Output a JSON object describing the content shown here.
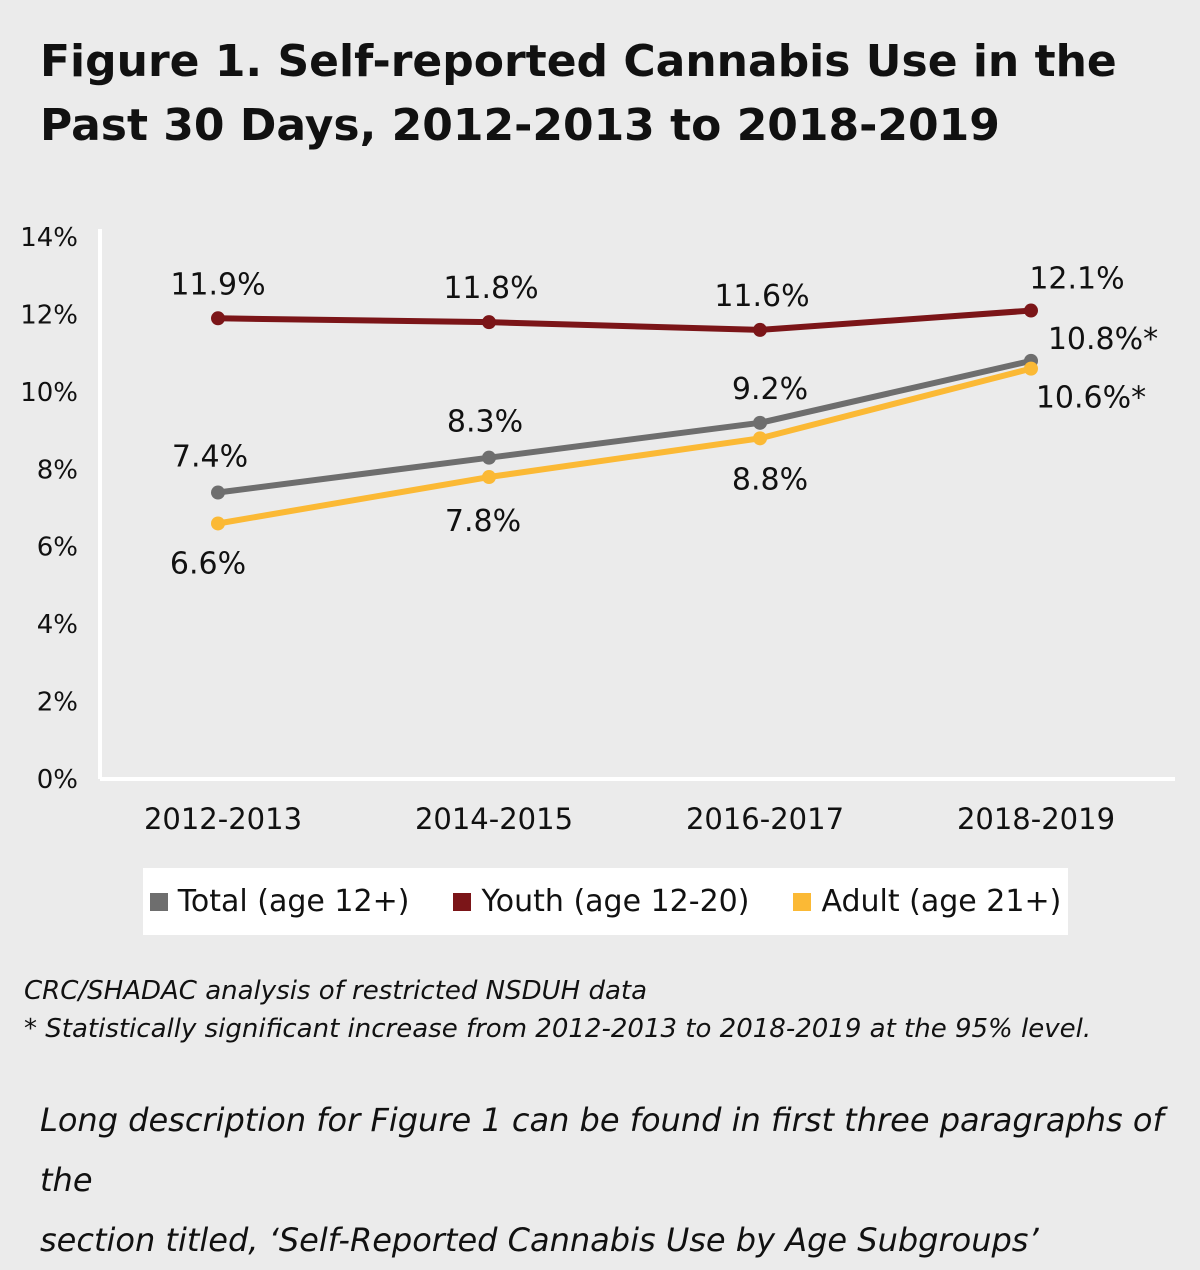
{
  "title_line1": "Figure 1. Self-reported Cannabis Use in the",
  "title_line2": "Past 30 Days, 2012-2013 to 2018-2019",
  "chart_data": {
    "type": "line",
    "title": "Figure 1. Self-reported Cannabis Use in the Past 30 Days, 2012-2013 to 2018-2019",
    "categories": [
      "2012-2013",
      "2014-2015",
      "2016-2017",
      "2018-2019"
    ],
    "ylim": [
      0,
      14
    ],
    "yticks": [
      0,
      2,
      4,
      6,
      8,
      10,
      12,
      14
    ],
    "ytick_labels": [
      "0%",
      "2%",
      "4%",
      "6%",
      "8%",
      "10%",
      "12%",
      "14%"
    ],
    "xlabel": "",
    "ylabel": "",
    "grid": false,
    "legend_position": "bottom",
    "series": [
      {
        "name": "Total (age 12+)",
        "key": "total",
        "color": "#6e6e6e",
        "values": [
          7.4,
          8.3,
          9.2,
          10.8
        ],
        "labels": [
          "7.4%",
          "8.3%",
          "9.2%",
          "10.8%*"
        ]
      },
      {
        "name": "Youth (age 12-20)",
        "key": "youth",
        "color": "#7b1518",
        "values": [
          11.9,
          11.8,
          11.6,
          12.1
        ],
        "labels": [
          "11.9%",
          "11.8%",
          "11.6%",
          "12.1%"
        ]
      },
      {
        "name": "Adult (age 21+)",
        "key": "adult",
        "color": "#fbb935",
        "values": [
          6.6,
          7.8,
          8.8,
          10.6
        ],
        "labels": [
          "6.6%",
          "7.8%",
          "8.8%",
          "10.6%*"
        ]
      }
    ]
  },
  "legend": {
    "items": [
      {
        "label": "Total (age 12+)",
        "color": "#6e6e6e"
      },
      {
        "label": "Youth (age 12-20)",
        "color": "#7b1518"
      },
      {
        "label": "Adult (age 21+)",
        "color": "#fbb935"
      }
    ]
  },
  "notes": {
    "source": "CRC/SHADAC analysis of restricted NSDUH data",
    "significance": "* Statistically significant increase from 2012-2013 to 2018-2019 at the 95% level."
  },
  "long_description": {
    "line1": "Long description for Figure 1 can be found in first three paragraphs of the",
    "line2": "section titled, ‘Self-Reported Cannabis Use by Age Subgroups’"
  }
}
